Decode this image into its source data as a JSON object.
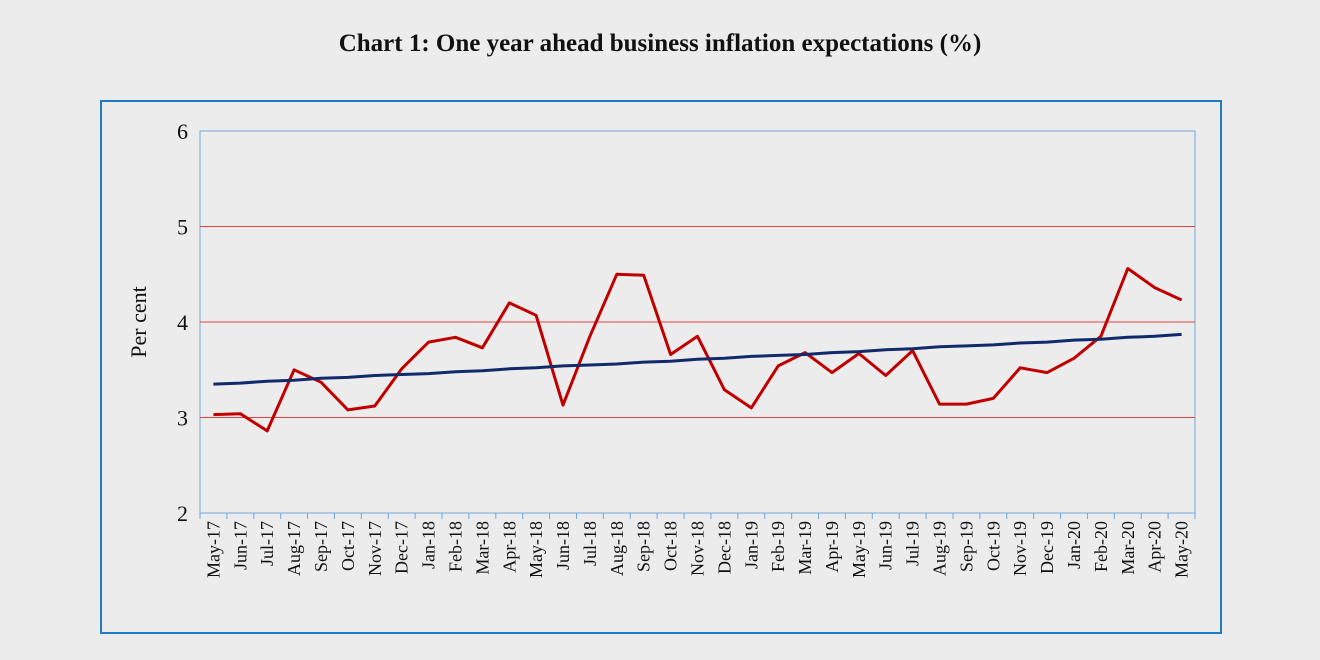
{
  "chart_data": {
    "type": "line",
    "title": "Chart 1: One year ahead business inflation expectations (%)",
    "xlabel": "",
    "ylabel": "Per cent",
    "ylim": [
      2,
      6
    ],
    "yticks": [
      2,
      3,
      4,
      5,
      6
    ],
    "grid": true,
    "legend": "none",
    "categories": [
      "May-17",
      "Jun-17",
      "Jul-17",
      "Aug-17",
      "Sep-17",
      "Oct-17",
      "Nov-17",
      "Dec-17",
      "Jan-18",
      "Feb-18",
      "Mar-18",
      "Apr-18",
      "May-18",
      "Jun-18",
      "Jul-18",
      "Aug-18",
      "Sep-18",
      "Oct-18",
      "Nov-18",
      "Dec-18",
      "Jan-19",
      "Feb-19",
      "Mar-19",
      "Apr-19",
      "May-19",
      "Jun-19",
      "Jul-19",
      "Aug-19",
      "Sep-19",
      "Oct-19",
      "Nov-19",
      "Dec-19",
      "Jan-20",
      "Feb-20",
      "Mar-20",
      "Apr-20",
      "May-20"
    ],
    "series": [
      {
        "color": "#c00000",
        "values": [
          3.03,
          3.04,
          2.86,
          3.5,
          3.37,
          3.08,
          3.12,
          3.51,
          3.79,
          3.84,
          3.73,
          4.2,
          4.07,
          3.13,
          3.85,
          4.5,
          4.49,
          3.66,
          3.85,
          3.29,
          3.1,
          3.54,
          3.68,
          3.47,
          3.67,
          3.44,
          3.7,
          3.14,
          3.14,
          3.2,
          3.52,
          3.47,
          3.62,
          3.85,
          4.56,
          4.36,
          4.23
        ]
      },
      {
        "color": "#102a6b",
        "values": [
          3.35,
          3.36,
          3.38,
          3.39,
          3.41,
          3.42,
          3.44,
          3.45,
          3.46,
          3.48,
          3.49,
          3.51,
          3.52,
          3.54,
          3.55,
          3.56,
          3.58,
          3.59,
          3.61,
          3.62,
          3.64,
          3.65,
          3.66,
          3.68,
          3.69,
          3.71,
          3.72,
          3.74,
          3.75,
          3.76,
          3.78,
          3.79,
          3.81,
          3.82,
          3.84,
          3.85,
          3.87
        ]
      }
    ]
  },
  "colors": {
    "background": "#ececec",
    "frame_border": "#1f7cc9",
    "plot_border": "#6fa8dc",
    "gridline": "#e8413c"
  }
}
